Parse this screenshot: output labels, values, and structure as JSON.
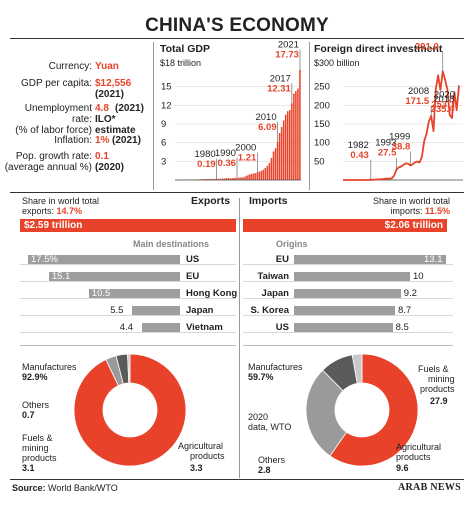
{
  "title": "CHINA'S ECONOMY",
  "stats": {
    "currency_label": "Currency:",
    "currency_value": "Yuan",
    "gdp_label": "GDP per capita:",
    "gdp_value": "$12,556",
    "gdp_year": "(2021)",
    "unemp_label1": "Unemployment",
    "unemp_label2": "rate:",
    "unemp_label3": "(% of labor force)",
    "unemp_value": "4.8",
    "unemp_year": "(2021)",
    "unemp_note1": "ILO*",
    "unemp_note2": "estimate",
    "infl_label": "Inflation:",
    "infl_value": "1%",
    "infl_year": "(2021)",
    "pop_label1": "Pop. growth rate:",
    "pop_label2": "(average annual %)",
    "pop_value": "0.1",
    "pop_year": "(2020)"
  },
  "gdp_panel": {
    "title": "Total GDP",
    "unit": "$18 trillion"
  },
  "fdi_panel": {
    "title": "Foreign direct investment",
    "unit": "$300 billion"
  },
  "exports": {
    "header": "Exports",
    "share1": "Share in world total",
    "share2": "exports:",
    "share_value": "14.7%",
    "total": "$2.59 trillion",
    "dest_title": "Main destinations",
    "origin_title": "",
    "composition": [
      {
        "name": "Manufactures",
        "value": "92.9%",
        "color": "#e8432a"
      },
      {
        "name": "Others",
        "value": "0.7",
        "color": "#c8c8c8"
      },
      {
        "name": "Fuels & mining products",
        "name1": "Fuels &",
        "name2": "mining",
        "name3": "products",
        "value": "3.1",
        "color": "#9a9a9a"
      },
      {
        "name": "Agricultural products",
        "name1": "Agricultural",
        "name2": "products",
        "value": "3.3",
        "color": "#5a5a5a"
      }
    ]
  },
  "imports": {
    "header": "Imports",
    "share1": "Share in world total",
    "share2": "imports:",
    "share_value": "11.5%",
    "total": "$2.06 trillion",
    "origin_title": "Origins",
    "note1": "2020",
    "note2": "data, WTO",
    "composition": [
      {
        "name": "Manufactures",
        "value": "59.7%",
        "color": "#e8432a"
      },
      {
        "name": "Fuels & mining products",
        "name1": "Fuels &",
        "name2": "mining",
        "name3": "products",
        "value": "27.9",
        "color": "#9a9a9a"
      },
      {
        "name": "Agricultural products",
        "name1": "Agricultural",
        "name2": "products",
        "value": "9.6",
        "color": "#5a5a5a"
      },
      {
        "name": "Others",
        "value": "2.8",
        "color": "#c8c8c8"
      }
    ]
  },
  "source_label": "Source:",
  "source_text": "World Bank/WTO",
  "brand": "ARAB NEWS",
  "colors": {
    "accent": "#e8432a",
    "bar": "#9e9e9e"
  },
  "chart_data": [
    {
      "type": "bar",
      "title": "Total GDP",
      "ylabel": "$18 trillion",
      "ylim": [
        0,
        18
      ],
      "yticks": [
        3,
        6,
        9,
        12,
        15
      ],
      "x": [
        1960,
        1961,
        1962,
        1963,
        1964,
        1965,
        1966,
        1967,
        1968,
        1969,
        1970,
        1971,
        1972,
        1973,
        1974,
        1975,
        1976,
        1977,
        1978,
        1979,
        1980,
        1981,
        1982,
        1983,
        1984,
        1985,
        1986,
        1987,
        1988,
        1989,
        1990,
        1991,
        1992,
        1993,
        1994,
        1995,
        1996,
        1997,
        1998,
        1999,
        2000,
        2001,
        2002,
        2003,
        2004,
        2005,
        2006,
        2007,
        2008,
        2009,
        2010,
        2011,
        2012,
        2013,
        2014,
        2015,
        2016,
        2017,
        2018,
        2019,
        2020,
        2021
      ],
      "values": [
        0.06,
        0.05,
        0.05,
        0.05,
        0.06,
        0.07,
        0.08,
        0.07,
        0.07,
        0.08,
        0.09,
        0.1,
        0.11,
        0.14,
        0.14,
        0.16,
        0.15,
        0.17,
        0.15,
        0.18,
        0.19,
        0.2,
        0.21,
        0.23,
        0.26,
        0.31,
        0.3,
        0.27,
        0.31,
        0.35,
        0.36,
        0.38,
        0.43,
        0.44,
        0.56,
        0.73,
        0.86,
        0.96,
        1.03,
        1.09,
        1.21,
        1.34,
        1.47,
        1.66,
        1.96,
        2.29,
        2.75,
        3.55,
        4.59,
        5.1,
        6.09,
        7.55,
        8.53,
        9.57,
        10.48,
        11.06,
        11.23,
        12.31,
        13.89,
        14.28,
        14.69,
        17.73
      ],
      "labels": [
        {
          "x": 1980,
          "year": "1980",
          "value": "0.19"
        },
        {
          "x": 1990,
          "year": "1990",
          "value": "0.36"
        },
        {
          "x": 2000,
          "year": "2000",
          "value": "1.21"
        },
        {
          "x": 2010,
          "year": "2010",
          "value": "6.09"
        },
        {
          "x": 2017,
          "year": "2017",
          "value": "12.31"
        },
        {
          "x": 2021,
          "year": "2021",
          "value": "17.73"
        }
      ]
    },
    {
      "type": "line",
      "title": "Foreign direct investment",
      "ylabel": "$300 billion",
      "ylim": [
        0,
        300
      ],
      "yticks": [
        50,
        100,
        150,
        200,
        250
      ],
      "x": [
        1970,
        1971,
        1972,
        1973,
        1974,
        1975,
        1976,
        1977,
        1978,
        1979,
        1980,
        1981,
        1982,
        1983,
        1984,
        1985,
        1986,
        1987,
        1988,
        1989,
        1990,
        1991,
        1992,
        1993,
        1994,
        1995,
        1996,
        1997,
        1998,
        1999,
        2000,
        2001,
        2002,
        2003,
        2004,
        2005,
        2006,
        2007,
        2008,
        2009,
        2010,
        2011,
        2012,
        2013,
        2014,
        2015,
        2016,
        2017,
        2018,
        2019,
        2020
      ],
      "values": [
        0,
        0,
        0,
        0,
        0,
        0,
        0,
        0,
        0,
        0,
        0.1,
        0.3,
        0.43,
        0.6,
        1.3,
        1.7,
        1.9,
        2.3,
        3.2,
        3.4,
        3.5,
        4.4,
        11.2,
        27.5,
        33.8,
        35.8,
        40.2,
        44.2,
        43.8,
        38.8,
        42.1,
        47.1,
        49.3,
        47.1,
        62.1,
        104.1,
        124.1,
        156.2,
        171.5,
        131.1,
        243.7,
        280.1,
        241.2,
        291.0,
        268.1,
        242.5,
        174.7,
        166.1,
        235.4,
        187.2,
        253.1
      ],
      "labels": [
        {
          "x": 1982,
          "year": "1982",
          "value": "0.43"
        },
        {
          "x": 1993,
          "year": "1993",
          "value": "27.5"
        },
        {
          "x": 1999,
          "year": "1999",
          "value": "38.8"
        },
        {
          "x": 2008,
          "year": "2008",
          "value": "171.5"
        },
        {
          "x": 2013,
          "year": "2013",
          "value": "291.0"
        },
        {
          "x": 2018,
          "year": "2018",
          "value": "235.4"
        },
        {
          "x": 2020,
          "year": "2020",
          "value": "253.1"
        }
      ]
    },
    {
      "type": "bar",
      "title": "Main destinations",
      "ylabel": "",
      "categories": [
        "US",
        "EU",
        "Hong Kong",
        "Japan",
        "Vietnam"
      ],
      "values": [
        17.5,
        15.1,
        10.5,
        5.5,
        4.4
      ],
      "labels": [
        "17.5%",
        "15.1",
        "10.5",
        "5.5",
        "4.4"
      ]
    },
    {
      "type": "bar",
      "title": "Origins",
      "ylabel": "",
      "categories": [
        "EU",
        "Taiwan",
        "Japan",
        "S. Korea",
        "US"
      ],
      "values": [
        13.1,
        10,
        9.2,
        8.7,
        8.5
      ],
      "labels": [
        "13.1",
        "10",
        "9.2",
        "8.7",
        "8.5"
      ]
    },
    {
      "type": "pie",
      "title": "Exports",
      "categories": [
        "Manufactures",
        "Fuels & mining products",
        "Agricultural products",
        "Others"
      ],
      "values": [
        92.9,
        3.1,
        3.3,
        0.7
      ]
    },
    {
      "type": "pie",
      "title": "Imports",
      "categories": [
        "Manufactures",
        "Fuels & mining products",
        "Agricultural products",
        "Others"
      ],
      "values": [
        59.7,
        27.9,
        9.6,
        2.8
      ]
    }
  ]
}
